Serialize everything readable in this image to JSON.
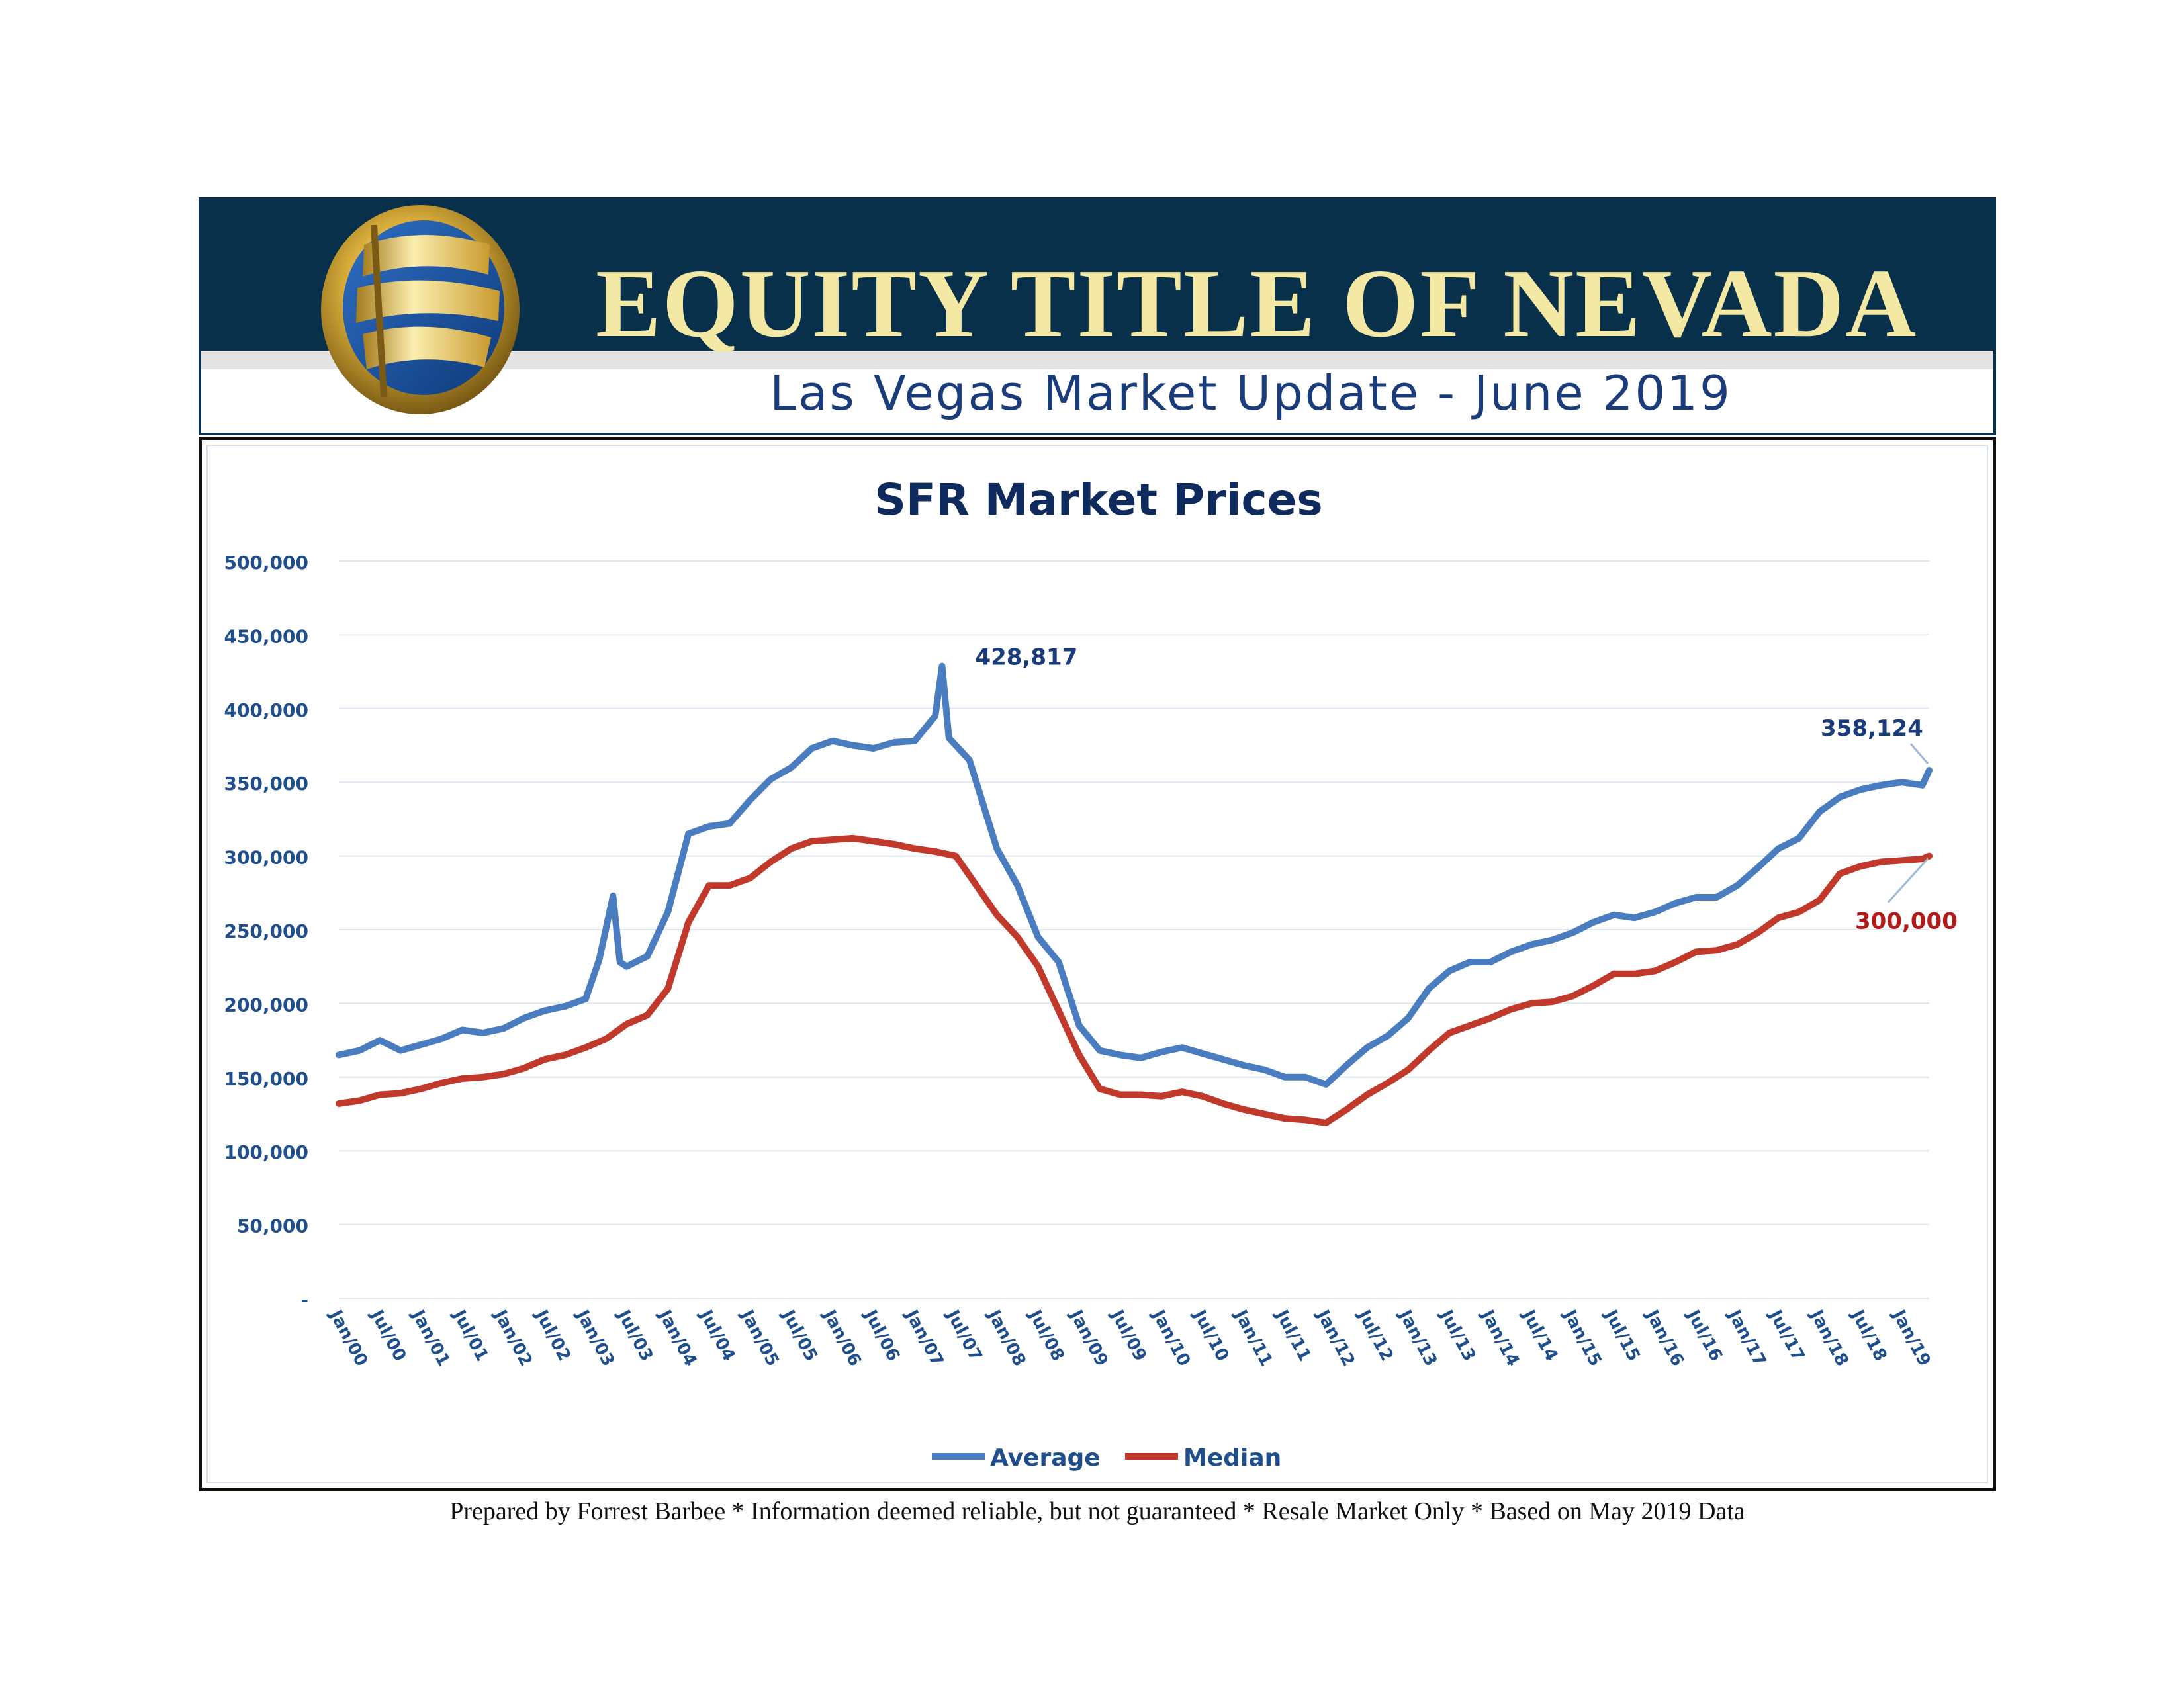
{
  "header": {
    "company": "EQUITY TITLE OF NEVADA",
    "subtitle": "Las Vegas Market Update - June 2019"
  },
  "footer": {
    "text": "Prepared by Forrest Barbee * Information deemed reliable, but not guaranteed * Resale Market Only * Based on May 2019 Data"
  },
  "colors": {
    "header_band": "#09304a",
    "title_gold": "#f3e9a4",
    "subtitle_blue": "#1b3c7a",
    "average": "#4a7dbf",
    "median": "#c0392b",
    "axis_text": "#1f4e8c"
  },
  "chart_data": {
    "type": "line",
    "title": "SFR Market Prices",
    "xlabel": "",
    "ylabel": "",
    "ylim": [
      0,
      500000
    ],
    "yticks": [
      {
        "value": 0,
        "label": "-"
      },
      {
        "value": 50000,
        "label": "50,000"
      },
      {
        "value": 100000,
        "label": "100,000"
      },
      {
        "value": 150000,
        "label": "150,000"
      },
      {
        "value": 200000,
        "label": "200,000"
      },
      {
        "value": 250000,
        "label": "250,000"
      },
      {
        "value": 300000,
        "label": "300,000"
      },
      {
        "value": 350000,
        "label": "350,000"
      },
      {
        "value": 400000,
        "label": "400,000"
      },
      {
        "value": 450000,
        "label": "450,000"
      },
      {
        "value": 500000,
        "label": "500,000"
      }
    ],
    "x_start": "Jan/00",
    "x_end": "May/19",
    "xtick_labels": [
      "Jan/00",
      "Jul/00",
      "Jan/01",
      "Jul/01",
      "Jan/02",
      "Jul/02",
      "Jan/03",
      "Jul/03",
      "Jan/04",
      "Jul/04",
      "Jan/05",
      "Jul/05",
      "Jan/06",
      "Jul/06",
      "Jan/07",
      "Jul/07",
      "Jan/08",
      "Jul/08",
      "Jan/09",
      "Jul/09",
      "Jan/10",
      "Jul/10",
      "Jan/11",
      "Jul/11",
      "Jan/12",
      "Jul/12",
      "Jan/13",
      "Jul/13",
      "Jan/14",
      "Jul/14",
      "Jan/15",
      "Jul/15",
      "Jan/16",
      "Jul/16",
      "Jan/17",
      "Jul/17",
      "Jan/18",
      "Jul/18",
      "Jan/19"
    ],
    "grid": true,
    "legend_position": "bottom",
    "series": [
      {
        "name": "Average",
        "color": "#4a7dbf",
        "points": [
          [
            "Jan/00",
            165000
          ],
          [
            "Apr/00",
            168000
          ],
          [
            "Jul/00",
            175000
          ],
          [
            "Oct/00",
            168000
          ],
          [
            "Jan/01",
            172000
          ],
          [
            "Apr/01",
            176000
          ],
          [
            "Jul/01",
            182000
          ],
          [
            "Oct/01",
            180000
          ],
          [
            "Jan/02",
            183000
          ],
          [
            "Apr/02",
            190000
          ],
          [
            "Jul/02",
            195000
          ],
          [
            "Oct/02",
            198000
          ],
          [
            "Jan/03",
            203000
          ],
          [
            "Mar/03",
            230000
          ],
          [
            "May/03",
            273000
          ],
          [
            "Jun/03",
            228000
          ],
          [
            "Jul/03",
            225000
          ],
          [
            "Oct/03",
            232000
          ],
          [
            "Jan/04",
            262000
          ],
          [
            "Apr/04",
            315000
          ],
          [
            "Jul/04",
            320000
          ],
          [
            "Oct/04",
            322000
          ],
          [
            "Jan/05",
            338000
          ],
          [
            "Apr/05",
            352000
          ],
          [
            "Jul/05",
            360000
          ],
          [
            "Oct/05",
            373000
          ],
          [
            "Jan/06",
            378000
          ],
          [
            "Apr/06",
            375000
          ],
          [
            "Jul/06",
            373000
          ],
          [
            "Oct/06",
            377000
          ],
          [
            "Jan/07",
            378000
          ],
          [
            "Apr/07",
            395000
          ],
          [
            "May/07",
            428817
          ],
          [
            "Jun/07",
            380000
          ],
          [
            "Sep/07",
            365000
          ],
          [
            "Jan/08",
            305000
          ],
          [
            "Apr/08",
            280000
          ],
          [
            "Jul/08",
            245000
          ],
          [
            "Oct/08",
            228000
          ],
          [
            "Jan/09",
            185000
          ],
          [
            "Apr/09",
            168000
          ],
          [
            "Jul/09",
            165000
          ],
          [
            "Oct/09",
            163000
          ],
          [
            "Jan/10",
            167000
          ],
          [
            "Apr/10",
            170000
          ],
          [
            "Jul/10",
            166000
          ],
          [
            "Oct/10",
            162000
          ],
          [
            "Jan/11",
            158000
          ],
          [
            "Apr/11",
            155000
          ],
          [
            "Jul/11",
            150000
          ],
          [
            "Oct/11",
            150000
          ],
          [
            "Jan/12",
            145000
          ],
          [
            "Apr/12",
            158000
          ],
          [
            "Jul/12",
            170000
          ],
          [
            "Oct/12",
            178000
          ],
          [
            "Jan/13",
            190000
          ],
          [
            "Apr/13",
            210000
          ],
          [
            "Jul/13",
            222000
          ],
          [
            "Oct/13",
            228000
          ],
          [
            "Jan/14",
            228000
          ],
          [
            "Apr/14",
            235000
          ],
          [
            "Jul/14",
            240000
          ],
          [
            "Oct/14",
            243000
          ],
          [
            "Jan/15",
            248000
          ],
          [
            "Apr/15",
            255000
          ],
          [
            "Jul/15",
            260000
          ],
          [
            "Oct/15",
            258000
          ],
          [
            "Jan/16",
            262000
          ],
          [
            "Apr/16",
            268000
          ],
          [
            "Jul/16",
            272000
          ],
          [
            "Oct/16",
            272000
          ],
          [
            "Jan/17",
            280000
          ],
          [
            "Apr/17",
            292000
          ],
          [
            "Jul/17",
            305000
          ],
          [
            "Oct/17",
            312000
          ],
          [
            "Jan/18",
            330000
          ],
          [
            "Apr/18",
            340000
          ],
          [
            "Jul/18",
            345000
          ],
          [
            "Oct/18",
            348000
          ],
          [
            "Jan/19",
            350000
          ],
          [
            "Apr/19",
            348000
          ],
          [
            "May/19",
            358124
          ]
        ]
      },
      {
        "name": "Median",
        "color": "#c0392b",
        "points": [
          [
            "Jan/00",
            132000
          ],
          [
            "Apr/00",
            134000
          ],
          [
            "Jul/00",
            138000
          ],
          [
            "Oct/00",
            139000
          ],
          [
            "Jan/01",
            142000
          ],
          [
            "Apr/01",
            146000
          ],
          [
            "Jul/01",
            149000
          ],
          [
            "Oct/01",
            150000
          ],
          [
            "Jan/02",
            152000
          ],
          [
            "Apr/02",
            156000
          ],
          [
            "Jul/02",
            162000
          ],
          [
            "Oct/02",
            165000
          ],
          [
            "Jan/03",
            170000
          ],
          [
            "Apr/03",
            176000
          ],
          [
            "Jul/03",
            186000
          ],
          [
            "Oct/03",
            192000
          ],
          [
            "Jan/04",
            210000
          ],
          [
            "Apr/04",
            255000
          ],
          [
            "Jul/04",
            280000
          ],
          [
            "Oct/04",
            280000
          ],
          [
            "Jan/05",
            285000
          ],
          [
            "Apr/05",
            296000
          ],
          [
            "Jul/05",
            305000
          ],
          [
            "Oct/05",
            310000
          ],
          [
            "Jan/06",
            311000
          ],
          [
            "Apr/06",
            312000
          ],
          [
            "Jul/06",
            310000
          ],
          [
            "Oct/06",
            308000
          ],
          [
            "Jan/07",
            305000
          ],
          [
            "Apr/07",
            303000
          ],
          [
            "Jul/07",
            300000
          ],
          [
            "Oct/07",
            280000
          ],
          [
            "Jan/08",
            260000
          ],
          [
            "Apr/08",
            245000
          ],
          [
            "Jul/08",
            225000
          ],
          [
            "Oct/08",
            195000
          ],
          [
            "Jan/09",
            165000
          ],
          [
            "Apr/09",
            142000
          ],
          [
            "Jul/09",
            138000
          ],
          [
            "Oct/09",
            138000
          ],
          [
            "Jan/10",
            137000
          ],
          [
            "Apr/10",
            140000
          ],
          [
            "Jul/10",
            137000
          ],
          [
            "Oct/10",
            132000
          ],
          [
            "Jan/11",
            128000
          ],
          [
            "Apr/11",
            125000
          ],
          [
            "Jul/11",
            122000
          ],
          [
            "Oct/11",
            121000
          ],
          [
            "Jan/12",
            119000
          ],
          [
            "Apr/12",
            128000
          ],
          [
            "Jul/12",
            138000
          ],
          [
            "Oct/12",
            146000
          ],
          [
            "Jan/13",
            155000
          ],
          [
            "Apr/13",
            168000
          ],
          [
            "Jul/13",
            180000
          ],
          [
            "Oct/13",
            185000
          ],
          [
            "Jan/14",
            190000
          ],
          [
            "Apr/14",
            196000
          ],
          [
            "Jul/14",
            200000
          ],
          [
            "Oct/14",
            201000
          ],
          [
            "Jan/15",
            205000
          ],
          [
            "Apr/15",
            212000
          ],
          [
            "Jul/15",
            220000
          ],
          [
            "Oct/15",
            220000
          ],
          [
            "Jan/16",
            222000
          ],
          [
            "Apr/16",
            228000
          ],
          [
            "Jul/16",
            235000
          ],
          [
            "Oct/16",
            236000
          ],
          [
            "Jan/17",
            240000
          ],
          [
            "Apr/17",
            248000
          ],
          [
            "Jul/17",
            258000
          ],
          [
            "Oct/17",
            262000
          ],
          [
            "Jan/18",
            270000
          ],
          [
            "Apr/18",
            288000
          ],
          [
            "Jul/18",
            293000
          ],
          [
            "Oct/18",
            296000
          ],
          [
            "Jan/19",
            297000
          ],
          [
            "Apr/19",
            298000
          ],
          [
            "May/19",
            300000
          ]
        ]
      }
    ],
    "annotations": [
      {
        "text": "428,817",
        "series": "Average",
        "at": "May/07",
        "value": 428817
      },
      {
        "text": "358,124",
        "series": "Average",
        "at": "May/19",
        "value": 358124
      },
      {
        "text": "300,000",
        "series": "Median",
        "at": "May/19",
        "value": 300000
      }
    ]
  }
}
